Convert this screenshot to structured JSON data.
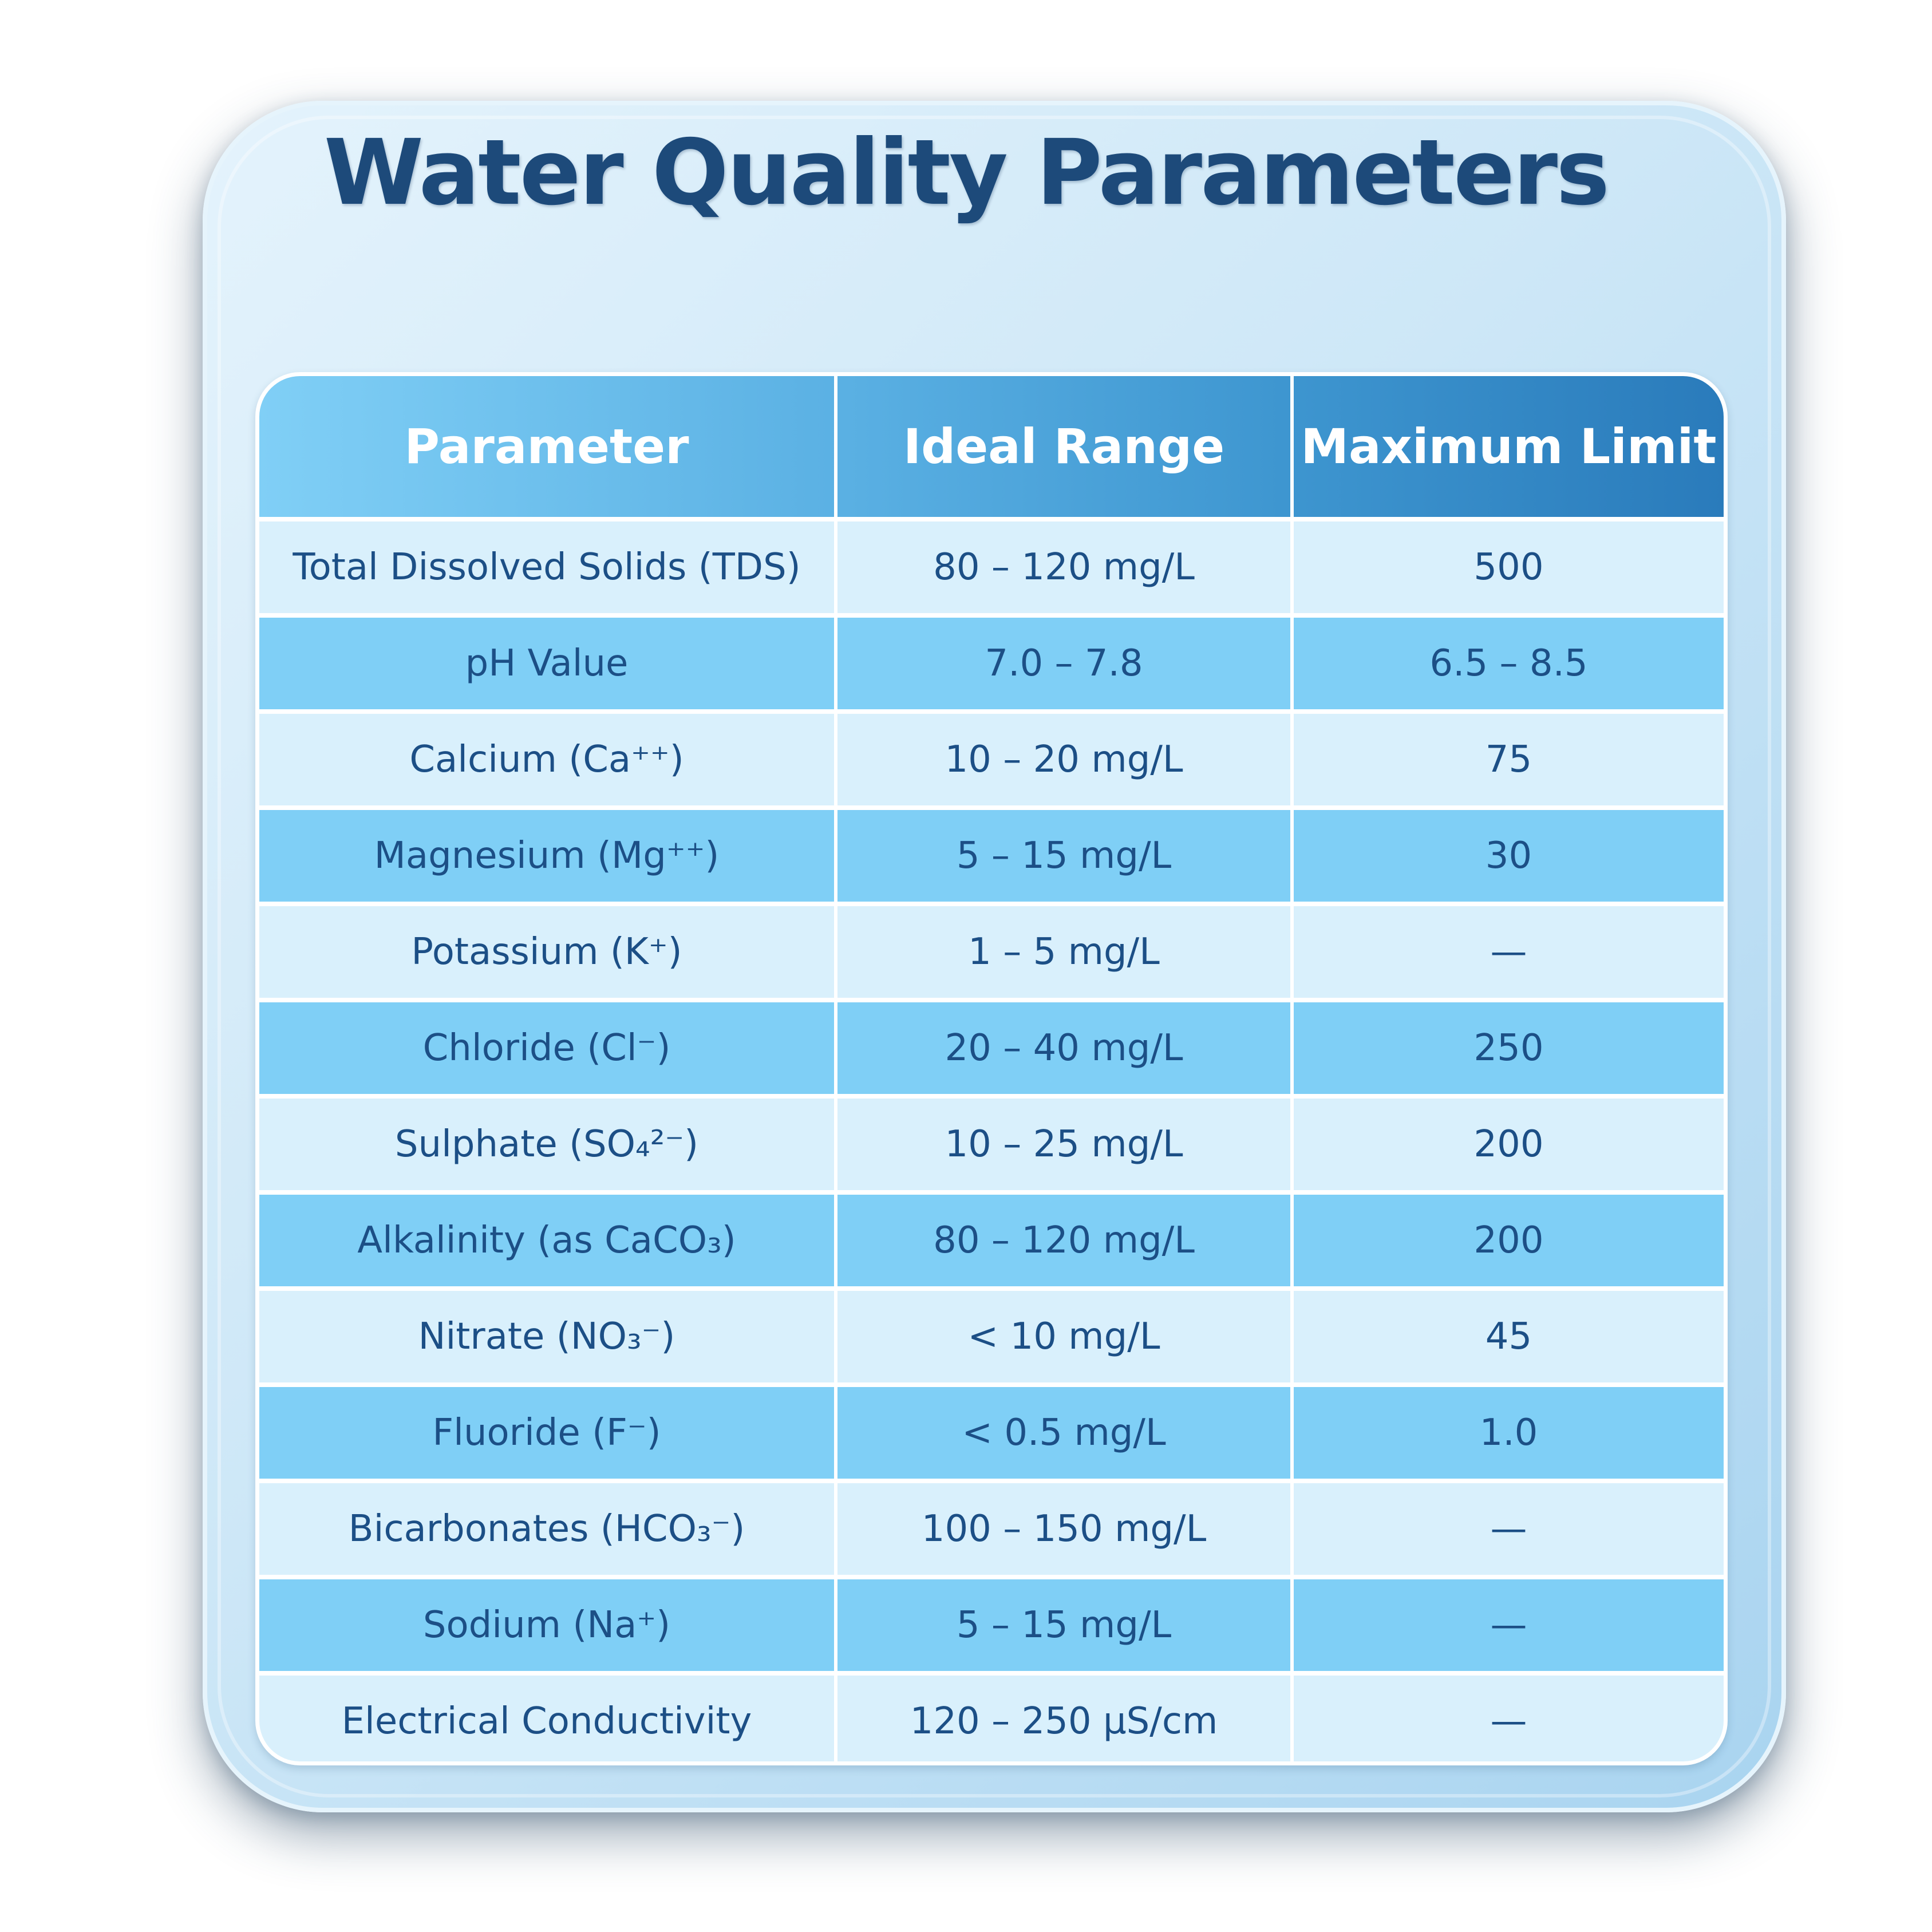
{
  "title": "Water Quality Parameters",
  "table": {
    "headers": [
      "Parameter",
      "Ideal Range",
      "Maximum Limit"
    ],
    "rows": [
      [
        "Total Dissolved Solids (TDS)",
        "80 – 120 mg/L",
        "500"
      ],
      [
        "pH Value",
        "7.0 – 7.8",
        "6.5 – 8.5"
      ],
      [
        "Calcium (Ca⁺⁺)",
        "10 – 20 mg/L",
        "75"
      ],
      [
        "Magnesium (Mg⁺⁺)",
        "5 – 15 mg/L",
        "30"
      ],
      [
        "Potassium (K⁺)",
        "1 – 5 mg/L",
        "—"
      ],
      [
        "Chloride (Cl⁻)",
        "20 – 40 mg/L",
        "250"
      ],
      [
        "Sulphate (SO₄²⁻)",
        "10 – 25 mg/L",
        "200"
      ],
      [
        "Alkalinity (as CaCO₃)",
        "80 – 120 mg/L",
        "200"
      ],
      [
        "Nitrate (NO₃⁻)",
        "< 10 mg/L",
        "45"
      ],
      [
        "Fluoride (F⁻)",
        "< 0.5 mg/L",
        "1.0"
      ],
      [
        "Bicarbonates (HCO₃⁻)",
        "100 – 150 mg/L",
        "—"
      ],
      [
        "Sodium (Na⁺)",
        "5 – 15 mg/L",
        "—"
      ],
      [
        "Electrical Conductivity",
        "120 – 250 µS/cm",
        "—"
      ]
    ]
  },
  "colors": {
    "title": "#1d4a7a",
    "row_light": "#d9f0fc",
    "row_dark": "#7fcff6",
    "cell_text": "#1c4f86",
    "header_start": "#80cff6",
    "header_end": "#2a7bbb"
  }
}
